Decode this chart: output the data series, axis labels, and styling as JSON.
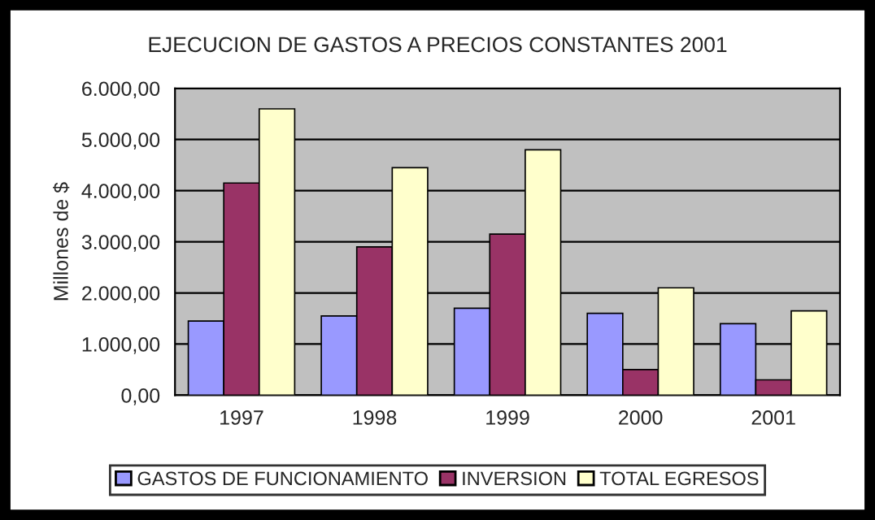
{
  "chart_data": {
    "type": "bar",
    "title": "EJECUCION DE GASTOS A PRECIOS CONSTANTES 2001",
    "ylabel": "Millones de $",
    "categories": [
      "1997",
      "1998",
      "1999",
      "2000",
      "2001"
    ],
    "series": [
      {
        "name": "GASTOS DE FUNCIONAMIENTO",
        "color": "#9999ff",
        "values": [
          1450,
          1550,
          1700,
          1600,
          1400
        ]
      },
      {
        "name": "INVERSION",
        "color": "#993366",
        "values": [
          4150,
          2900,
          3150,
          500,
          300
        ]
      },
      {
        "name": "TOTAL EGRESOS",
        "color": "#ffffcc",
        "values": [
          5600,
          4450,
          4800,
          2100,
          1650
        ]
      }
    ],
    "ylim": [
      0,
      6000
    ],
    "yticks": [
      {
        "value": 0,
        "label": "0,00"
      },
      {
        "value": 1000,
        "label": "1.000,00"
      },
      {
        "value": 2000,
        "label": "2.000,00"
      },
      {
        "value": 3000,
        "label": "3.000,00"
      },
      {
        "value": 4000,
        "label": "4.000,00"
      },
      {
        "value": 5000,
        "label": "5.000,00"
      },
      {
        "value": 6000,
        "label": "6.000,00"
      }
    ],
    "grid": "y",
    "legend": "bottom"
  }
}
